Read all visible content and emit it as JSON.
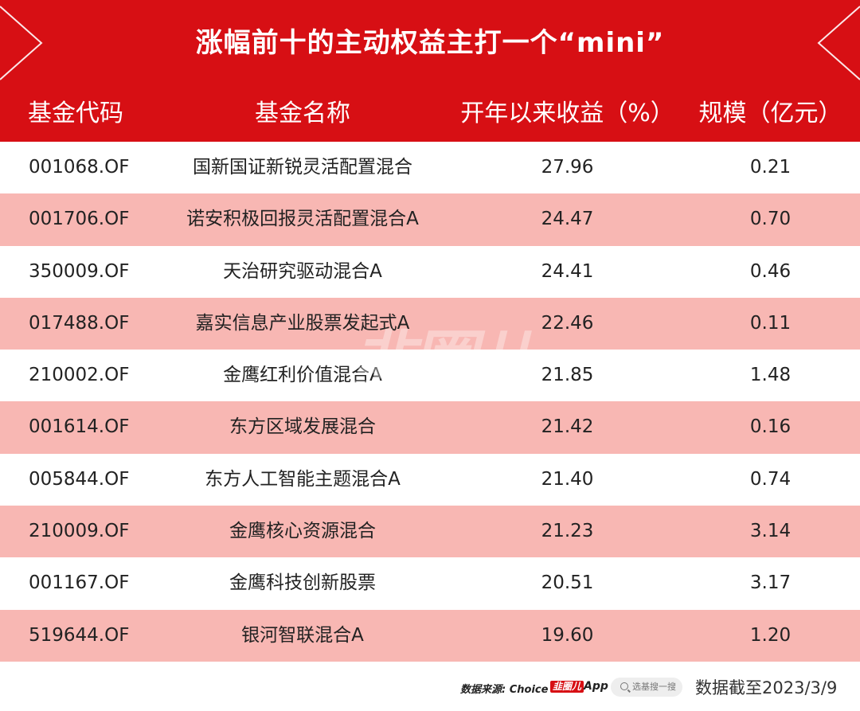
{
  "banner": {
    "title": "涨幅前十的主动权益主打一个“mini”"
  },
  "table": {
    "headers": [
      "基金代码",
      "基金名称",
      "开年以来收益（%）",
      "规模（亿元）"
    ],
    "rows": [
      [
        "001068.OF",
        "国新国证新锐灵活配置混合",
        "27.96",
        "0.21"
      ],
      [
        "001706.OF",
        "诺安积极回报灵活配置混合A",
        "24.47",
        "0.70"
      ],
      [
        "350009.OF",
        "天治研究驱动混合A",
        "24.41",
        "0.46"
      ],
      [
        "017488.OF",
        "嘉实信息产业股票发起式A",
        "22.46",
        "0.11"
      ],
      [
        "210002.OF",
        "金鹰红利价值混合A",
        "21.85",
        "1.48"
      ],
      [
        "001614.OF",
        "东方区域发展混合",
        "21.42",
        "0.16"
      ],
      [
        "005844.OF",
        "东方人工智能主题混合A",
        "21.40",
        "0.74"
      ],
      [
        "210009.OF",
        "金鹰核心资源混合",
        "21.23",
        "3.14"
      ],
      [
        "001167.OF",
        "金鹰科技创新股票",
        "20.51",
        "3.17"
      ],
      [
        "519644.OF",
        "银河智联混合A",
        "19.60",
        "1.20"
      ]
    ]
  },
  "watermark": "韭圈儿",
  "footer": {
    "source": "数据来源: Choice ·",
    "app_mark": "韭圈儿",
    "app_suffix": "App",
    "search_hint": "选基搜一搜",
    "date_note": "数据截至2023/3/9"
  },
  "colors": {
    "brand_red": "#d70f14",
    "row_alt": "#f8b7b3"
  }
}
